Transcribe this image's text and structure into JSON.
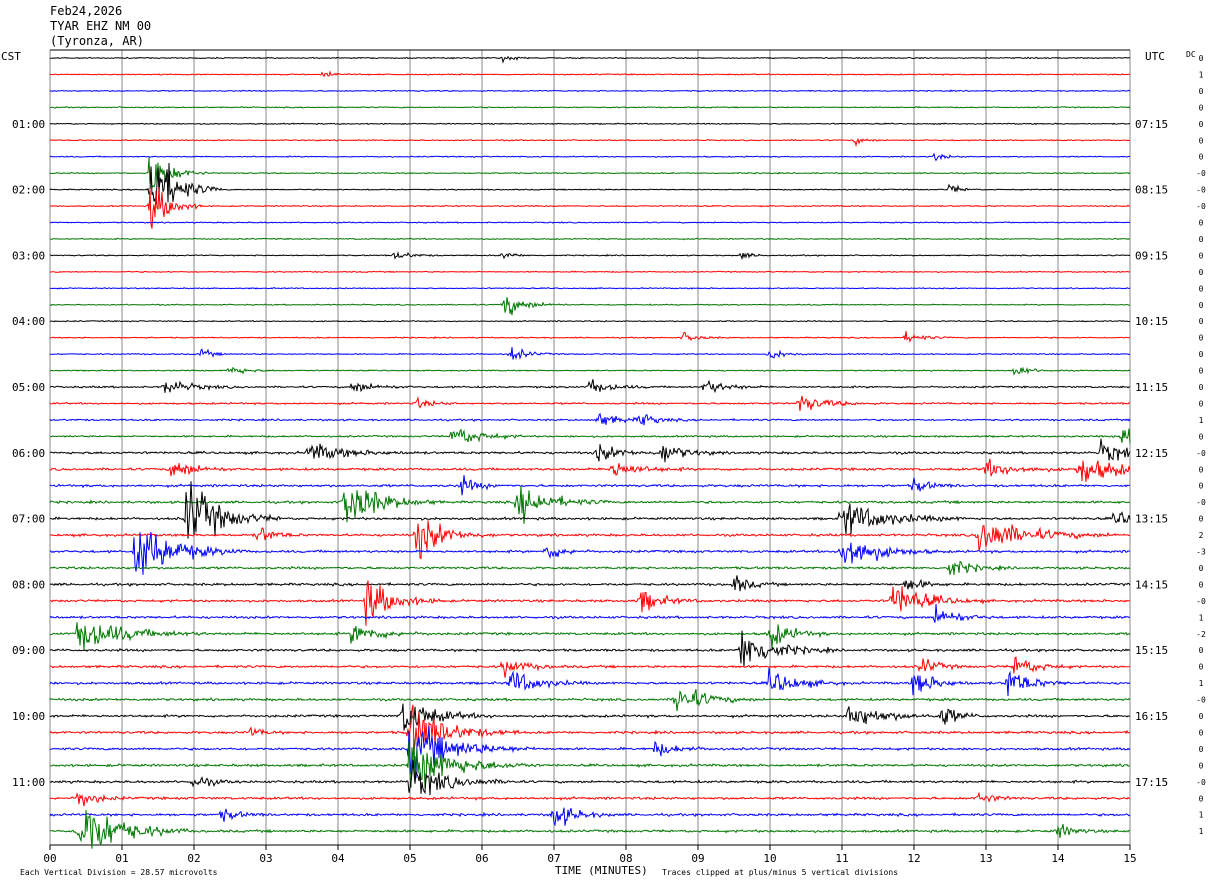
{
  "header": {
    "date": "Feb24,2026",
    "station": "TYAR EHZ NM 00",
    "location": "(Tyronza, AR)"
  },
  "chart_data": {
    "type": "line",
    "title": "Feb24,2026",
    "left_axis_label": "CST",
    "right_axis_label": "UTC",
    "dc_label": "DC",
    "xlabel": "TIME (MINUTES)",
    "xlim": [
      0,
      15
    ],
    "x_ticks": [
      "00",
      "01",
      "02",
      "03",
      "04",
      "05",
      "06",
      "07",
      "08",
      "09",
      "10",
      "11",
      "12",
      "13",
      "14",
      "15"
    ],
    "row_count": 48,
    "row_minutes": 15,
    "trace_colors": [
      "#000000",
      "#ff0000",
      "#0000ff",
      "#007700"
    ],
    "left_hour_labels": [
      {
        "row": 4,
        "text": "01:00"
      },
      {
        "row": 8,
        "text": "02:00"
      },
      {
        "row": 12,
        "text": "03:00"
      },
      {
        "row": 16,
        "text": "04:00"
      },
      {
        "row": 20,
        "text": "05:00"
      },
      {
        "row": 24,
        "text": "06:00"
      },
      {
        "row": 28,
        "text": "07:00"
      },
      {
        "row": 32,
        "text": "08:00"
      },
      {
        "row": 36,
        "text": "09:00"
      },
      {
        "row": 40,
        "text": "10:00"
      },
      {
        "row": 44,
        "text": "11:00"
      }
    ],
    "right_hour_labels": [
      {
        "row": 4,
        "text": "07:15"
      },
      {
        "row": 8,
        "text": "08:15"
      },
      {
        "row": 12,
        "text": "09:15"
      },
      {
        "row": 16,
        "text": "10:15"
      },
      {
        "row": 20,
        "text": "11:15"
      },
      {
        "row": 24,
        "text": "12:15"
      },
      {
        "row": 28,
        "text": "13:15"
      },
      {
        "row": 32,
        "text": "14:15"
      },
      {
        "row": 36,
        "text": "15:15"
      },
      {
        "row": 40,
        "text": "16:15"
      },
      {
        "row": 44,
        "text": "17:15"
      }
    ],
    "dc_offsets": [
      "0",
      "1",
      "0",
      "0",
      "0",
      "0",
      "0",
      "-0",
      "-0",
      "-0",
      "0",
      "0",
      "0",
      "0",
      "0",
      "0",
      "0",
      "0",
      "0",
      "0",
      "0",
      "0",
      "1",
      "0",
      "-0",
      "0",
      "0",
      "-0",
      "0",
      "2",
      "-3",
      "0",
      "0",
      "-0",
      "1",
      "-2",
      "0",
      "0",
      "1",
      "-0",
      "0",
      "0",
      "0",
      "0",
      "-0",
      "0",
      "1",
      "1"
    ],
    "events": [
      {
        "row": 0,
        "minute": 6.3,
        "amp": 0.4,
        "dur": 0.2
      },
      {
        "row": 1,
        "minute": 3.8,
        "amp": 0.5,
        "dur": 0.2
      },
      {
        "row": 5,
        "minute": 11.2,
        "amp": 0.4,
        "dur": 0.2
      },
      {
        "row": 6,
        "minute": 12.3,
        "amp": 0.4,
        "dur": 0.2
      },
      {
        "row": 7,
        "minute": 1.4,
        "amp": 3.0,
        "dur": 0.35
      },
      {
        "row": 8,
        "minute": 1.4,
        "amp": 5.0,
        "dur": 0.45
      },
      {
        "row": 8,
        "minute": 12.5,
        "amp": 0.6,
        "dur": 0.2
      },
      {
        "row": 9,
        "minute": 1.4,
        "amp": 3.0,
        "dur": 0.35
      },
      {
        "row": 12,
        "minute": 4.8,
        "amp": 0.5,
        "dur": 0.3
      },
      {
        "row": 12,
        "minute": 6.3,
        "amp": 0.5,
        "dur": 0.2
      },
      {
        "row": 12,
        "minute": 9.6,
        "amp": 0.4,
        "dur": 0.2
      },
      {
        "row": 15,
        "minute": 6.3,
        "amp": 1.3,
        "dur": 0.4
      },
      {
        "row": 17,
        "minute": 8.8,
        "amp": 0.5,
        "dur": 0.3
      },
      {
        "row": 17,
        "minute": 11.9,
        "amp": 0.6,
        "dur": 0.3
      },
      {
        "row": 18,
        "minute": 2.1,
        "amp": 0.6,
        "dur": 0.2
      },
      {
        "row": 18,
        "minute": 6.4,
        "amp": 0.8,
        "dur": 0.3
      },
      {
        "row": 18,
        "minute": 10.0,
        "amp": 0.6,
        "dur": 0.3
      },
      {
        "row": 19,
        "minute": 2.5,
        "amp": 0.6,
        "dur": 0.3
      },
      {
        "row": 19,
        "minute": 13.4,
        "amp": 0.6,
        "dur": 0.3
      },
      {
        "row": 20,
        "minute": 1.6,
        "amp": 0.8,
        "dur": 0.5
      },
      {
        "row": 20,
        "minute": 4.2,
        "amp": 0.7,
        "dur": 0.4
      },
      {
        "row": 20,
        "minute": 7.5,
        "amp": 0.8,
        "dur": 0.4
      },
      {
        "row": 20,
        "minute": 9.1,
        "amp": 0.8,
        "dur": 0.4
      },
      {
        "row": 21,
        "minute": 5.1,
        "amp": 0.5,
        "dur": 0.3
      },
      {
        "row": 21,
        "minute": 10.4,
        "amp": 1.0,
        "dur": 0.5
      },
      {
        "row": 22,
        "minute": 7.6,
        "amp": 0.8,
        "dur": 0.4
      },
      {
        "row": 22,
        "minute": 8.2,
        "amp": 0.7,
        "dur": 0.3
      },
      {
        "row": 23,
        "minute": 5.6,
        "amp": 1.2,
        "dur": 0.5
      },
      {
        "row": 23,
        "minute": 14.9,
        "amp": 1.2,
        "dur": 0.4
      },
      {
        "row": 24,
        "minute": 3.6,
        "amp": 1.0,
        "dur": 0.7
      },
      {
        "row": 24,
        "minute": 7.6,
        "amp": 1.0,
        "dur": 0.4
      },
      {
        "row": 24,
        "minute": 8.5,
        "amp": 1.2,
        "dur": 0.4
      },
      {
        "row": 24,
        "minute": 14.6,
        "amp": 1.2,
        "dur": 0.5
      },
      {
        "row": 25,
        "minute": 1.7,
        "amp": 1.2,
        "dur": 0.4
      },
      {
        "row": 25,
        "minute": 7.8,
        "amp": 1.0,
        "dur": 0.5
      },
      {
        "row": 25,
        "minute": 13.0,
        "amp": 0.9,
        "dur": 0.6
      },
      {
        "row": 25,
        "minute": 14.3,
        "amp": 1.5,
        "dur": 0.8
      },
      {
        "row": 26,
        "minute": 5.7,
        "amp": 1.0,
        "dur": 0.3
      },
      {
        "row": 26,
        "minute": 12.0,
        "amp": 0.8,
        "dur": 0.3
      },
      {
        "row": 27,
        "minute": 4.1,
        "amp": 3.0,
        "dur": 0.6
      },
      {
        "row": 27,
        "minute": 6.5,
        "amp": 2.0,
        "dur": 0.6
      },
      {
        "row": 28,
        "minute": 1.9,
        "amp": 4.0,
        "dur": 0.6
      },
      {
        "row": 28,
        "minute": 11.0,
        "amp": 2.0,
        "dur": 0.8
      },
      {
        "row": 28,
        "minute": 14.8,
        "amp": 1.0,
        "dur": 0.3
      },
      {
        "row": 29,
        "minute": 5.1,
        "amp": 2.5,
        "dur": 0.5
      },
      {
        "row": 29,
        "minute": 12.9,
        "amp": 2.0,
        "dur": 0.9
      },
      {
        "row": 29,
        "minute": 2.9,
        "amp": 1.0,
        "dur": 0.3
      },
      {
        "row": 30,
        "minute": 1.2,
        "amp": 3.5,
        "dur": 0.7
      },
      {
        "row": 30,
        "minute": 11.0,
        "amp": 2.5,
        "dur": 0.6
      },
      {
        "row": 30,
        "minute": 6.9,
        "amp": 1.0,
        "dur": 0.3
      },
      {
        "row": 31,
        "minute": 12.5,
        "amp": 1.0,
        "dur": 0.4
      },
      {
        "row": 32,
        "minute": 9.5,
        "amp": 1.0,
        "dur": 0.3
      },
      {
        "row": 32,
        "minute": 11.9,
        "amp": 0.8,
        "dur": 0.3
      },
      {
        "row": 33,
        "minute": 4.4,
        "amp": 2.5,
        "dur": 0.5
      },
      {
        "row": 33,
        "minute": 8.2,
        "amp": 1.3,
        "dur": 0.4
      },
      {
        "row": 33,
        "minute": 11.7,
        "amp": 2.0,
        "dur": 0.6
      },
      {
        "row": 34,
        "minute": 12.3,
        "amp": 1.2,
        "dur": 0.4
      },
      {
        "row": 35,
        "minute": 0.4,
        "amp": 2.0,
        "dur": 0.8
      },
      {
        "row": 35,
        "minute": 4.2,
        "amp": 1.2,
        "dur": 0.5
      },
      {
        "row": 35,
        "minute": 10.0,
        "amp": 1.5,
        "dur": 0.4
      },
      {
        "row": 36,
        "minute": 9.6,
        "amp": 2.5,
        "dur": 0.6
      },
      {
        "row": 37,
        "minute": 6.3,
        "amp": 1.0,
        "dur": 0.4
      },
      {
        "row": 37,
        "minute": 12.1,
        "amp": 1.0,
        "dur": 0.3
      },
      {
        "row": 37,
        "minute": 13.4,
        "amp": 1.2,
        "dur": 0.4
      },
      {
        "row": 38,
        "minute": 6.4,
        "amp": 1.5,
        "dur": 0.5
      },
      {
        "row": 38,
        "minute": 10.0,
        "amp": 1.5,
        "dur": 0.5
      },
      {
        "row": 38,
        "minute": 12.0,
        "amp": 1.5,
        "dur": 0.4
      },
      {
        "row": 38,
        "minute": 13.3,
        "amp": 1.8,
        "dur": 0.4
      },
      {
        "row": 39,
        "minute": 8.7,
        "amp": 1.8,
        "dur": 0.5
      },
      {
        "row": 40,
        "minute": 4.9,
        "amp": 2.0,
        "dur": 0.6
      },
      {
        "row": 40,
        "minute": 11.1,
        "amp": 1.5,
        "dur": 0.6
      },
      {
        "row": 40,
        "minute": 12.4,
        "amp": 1.2,
        "dur": 0.3
      },
      {
        "row": 41,
        "minute": 2.8,
        "amp": 0.6,
        "dur": 0.2
      },
      {
        "row": 41,
        "minute": 5.0,
        "amp": 3.0,
        "dur": 0.7
      },
      {
        "row": 42,
        "minute": 5.0,
        "amp": 3.0,
        "dur": 0.8
      },
      {
        "row": 42,
        "minute": 8.4,
        "amp": 0.8,
        "dur": 0.4
      },
      {
        "row": 43,
        "minute": 5.0,
        "amp": 3.0,
        "dur": 0.8
      },
      {
        "row": 44,
        "minute": 5.0,
        "amp": 2.0,
        "dur": 0.7
      },
      {
        "row": 44,
        "minute": 2.0,
        "amp": 0.8,
        "dur": 0.3
      },
      {
        "row": 45,
        "minute": 0.4,
        "amp": 1.2,
        "dur": 0.3
      },
      {
        "row": 45,
        "minute": 12.9,
        "amp": 0.6,
        "dur": 0.3
      },
      {
        "row": 46,
        "minute": 7.0,
        "amp": 1.5,
        "dur": 0.4
      },
      {
        "row": 46,
        "minute": 2.4,
        "amp": 0.7,
        "dur": 0.3
      },
      {
        "row": 47,
        "minute": 0.4,
        "amp": 4.0,
        "dur": 0.7
      },
      {
        "row": 47,
        "minute": 14.0,
        "amp": 0.8,
        "dur": 0.3
      }
    ],
    "footer": {
      "scale_note": "Each Vertical Division =   28.57 microvolts",
      "clip_note": "Traces clipped at plus/minus 5 vertical divisions"
    }
  }
}
